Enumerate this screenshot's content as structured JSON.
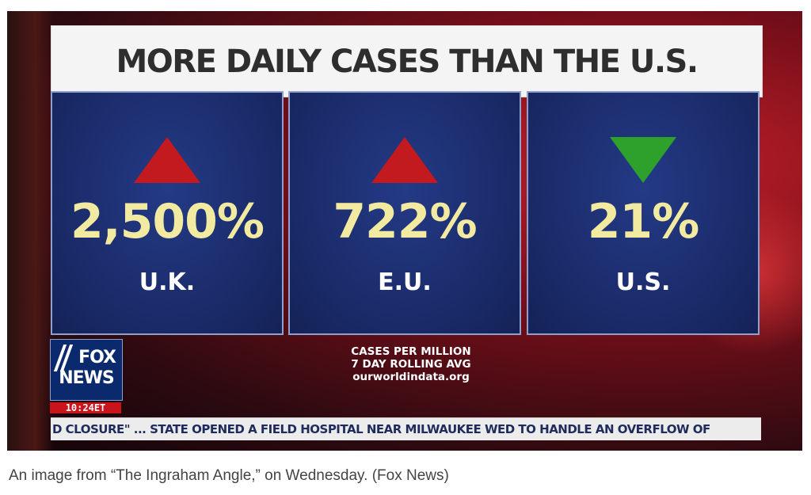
{
  "graphic": {
    "title": "MORE DAILY CASES THAN THE U.S.",
    "panels": [
      {
        "value": "2,500%",
        "region": "U.K.",
        "trend": "up",
        "color": "#c21a1e"
      },
      {
        "value": "722%",
        "region": "E.U.",
        "trend": "up",
        "color": "#c21a1e"
      },
      {
        "value": "21%",
        "region": "U.S.",
        "trend": "down",
        "color": "#2ea12c"
      }
    ],
    "source_lines": [
      "CASES PER MILLION",
      "7 DAY ROLLING AVG",
      "ourworldindata.org"
    ]
  },
  "network": {
    "logo_line1": "FOX",
    "logo_line2": "NEWS",
    "clock": "10:24ET"
  },
  "ticker": {
    "text": "D CLOSURE\" ... STATE OPENED A FIELD HOSPITAL NEAR MILWAUKEE WED TO HANDLE AN OVERFLOW OF"
  },
  "caption": "An image from “The Ingraham Angle,” on Wednesday. (Fox News)"
}
